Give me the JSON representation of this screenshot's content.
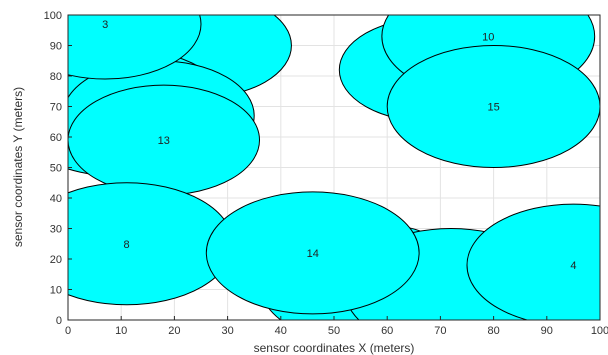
{
  "chart_data": {
    "type": "scatter",
    "title": "",
    "xlabel": "sensor coordinates X (meters)",
    "ylabel": "sensor coordinates Y (meters)",
    "xlim": [
      0,
      100
    ],
    "ylim": [
      0,
      100
    ],
    "xticks": [
      "0",
      "10",
      "20",
      "30",
      "40",
      "50",
      "60",
      "70",
      "80",
      "90",
      "100"
    ],
    "yticks": [
      "0",
      "10",
      "20",
      "30",
      "40",
      "50",
      "60",
      "70",
      "80",
      "90",
      "100"
    ],
    "grid": true,
    "colors": {
      "fill": "#00ffff",
      "edge": "#000000",
      "grid": "#e3e3e3"
    },
    "sensors": [
      {
        "id": "",
        "x": 25,
        "y": 90,
        "r": 17
      },
      {
        "id": "",
        "x": 68,
        "y": 82,
        "r": 17
      },
      {
        "id": "",
        "x": 10,
        "y": 68,
        "r": 21
      },
      {
        "id": "",
        "x": 17,
        "y": 67,
        "r": 18
      },
      {
        "id": "",
        "x": 56,
        "y": 12,
        "r": 20
      },
      {
        "id": "",
        "x": 72,
        "y": 10,
        "r": 20
      },
      {
        "id": "3",
        "x": 7,
        "y": 97,
        "r": 18
      },
      {
        "id": "10",
        "x": 79,
        "y": 93,
        "r": 20
      },
      {
        "id": "15",
        "x": 80,
        "y": 70,
        "r": 20
      },
      {
        "id": "13",
        "x": 18,
        "y": 59,
        "r": 18
      },
      {
        "id": "8",
        "x": 11,
        "y": 25,
        "r": 20
      },
      {
        "id": "14",
        "x": 46,
        "y": 22,
        "r": 20
      },
      {
        "id": "4",
        "x": 95,
        "y": 18,
        "r": 20
      }
    ]
  }
}
